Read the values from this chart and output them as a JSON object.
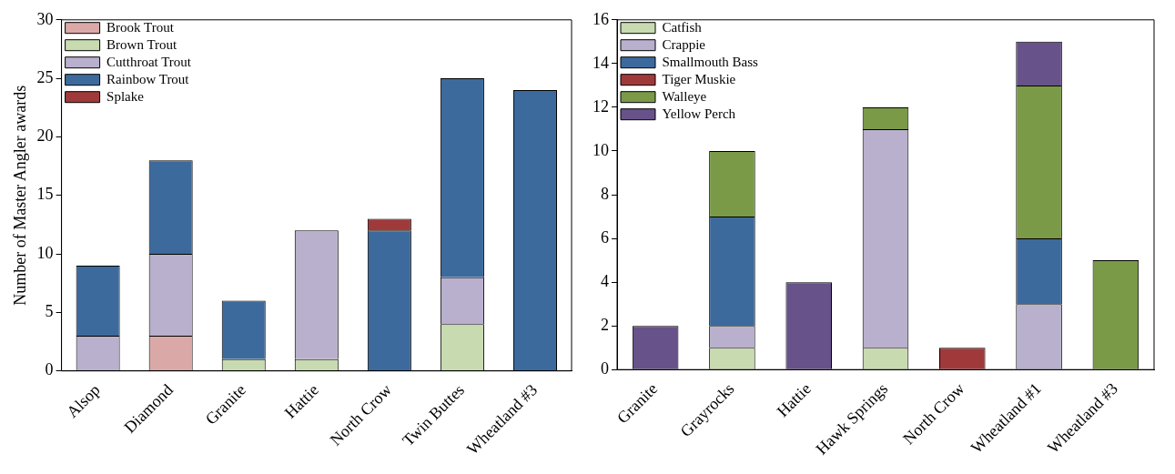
{
  "chart_data": [
    {
      "type": "bar",
      "ylabel": "Number of Master Angler awards",
      "categories": [
        "Alsop",
        "Diamond",
        "Granite",
        "Hattie",
        "North Crow",
        "Twin Buttes",
        "Wheatland #3"
      ],
      "stacked": true,
      "ylim": [
        0,
        30
      ],
      "yticks": [
        0,
        5,
        10,
        15,
        20,
        25,
        30
      ],
      "grid": false,
      "legend": "top left",
      "series": [
        {
          "name": "Brook Trout",
          "color": "#dba8a8",
          "values": [
            null,
            3,
            null,
            null,
            null,
            null,
            null
          ]
        },
        {
          "name": "Brown Trout",
          "color": "#c8dbb0",
          "values": [
            null,
            null,
            1,
            1,
            null,
            4,
            null
          ]
        },
        {
          "name": "Cutthroat Trout",
          "color": "#b8b0cc",
          "values": [
            3,
            7,
            null,
            11,
            null,
            4,
            null
          ]
        },
        {
          "name": "Rainbow Trout",
          "color": "#3d6a9c",
          "values": [
            6,
            8,
            5,
            null,
            12,
            17,
            24
          ]
        },
        {
          "name": "Splake",
          "color": "#a03a3a",
          "values": [
            null,
            null,
            null,
            null,
            1,
            null,
            null
          ]
        }
      ]
    },
    {
      "type": "bar",
      "categories": [
        "Granite",
        "Grayrocks",
        "Hattie",
        "Hawk Springs",
        "North Crow",
        "Wheatland #1",
        "Wheatland #3"
      ],
      "stacked": true,
      "ylim": [
        0,
        16
      ],
      "yticks": [
        0,
        2,
        4,
        6,
        8,
        10,
        12,
        14,
        16
      ],
      "grid": false,
      "legend": "top left",
      "series": [
        {
          "name": "Catfish",
          "color": "#c8dbb0",
          "values": [
            null,
            1,
            null,
            1,
            null,
            null,
            null
          ]
        },
        {
          "name": "Crappie",
          "color": "#b8b0cc",
          "values": [
            null,
            1,
            null,
            10,
            null,
            3,
            null
          ]
        },
        {
          "name": "Smallmouth Bass",
          "color": "#3d6a9c",
          "values": [
            null,
            5,
            null,
            null,
            null,
            3,
            null
          ]
        },
        {
          "name": "Tiger Muskie",
          "color": "#a03a3a",
          "values": [
            null,
            null,
            null,
            null,
            1,
            null,
            null
          ]
        },
        {
          "name": "Walleye",
          "color": "#7a9a48",
          "values": [
            null,
            3,
            null,
            1,
            null,
            7,
            5
          ]
        },
        {
          "name": "Yellow Perch",
          "color": "#68528a",
          "values": [
            2,
            null,
            4,
            null,
            null,
            2,
            null
          ]
        }
      ]
    }
  ]
}
